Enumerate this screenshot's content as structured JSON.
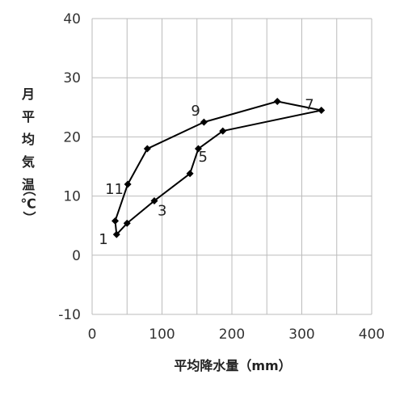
{
  "chart_data": {
    "type": "line",
    "xlabel": "平均降水量（mm）",
    "ylabel": "月平均気温（℃）",
    "ylabel_chars": [
      "月",
      "平",
      "均",
      "気",
      "温",
      "（℃）"
    ],
    "xlim": [
      0,
      400
    ],
    "ylim": [
      -10,
      40
    ],
    "xticks": [
      "0",
      "100",
      "200",
      "300",
      "400"
    ],
    "yticks": [
      "40",
      "30",
      "20",
      "10",
      "0",
      "-10"
    ],
    "grid": true,
    "closed_loop": true,
    "line_color": "#000000",
    "grid_color": "#bbbbbb",
    "points": [
      {
        "x": 35,
        "y": 3.5
      },
      {
        "x": 33,
        "y": 5.8
      },
      {
        "x": 51,
        "y": 12
      },
      {
        "x": 79,
        "y": 18
      },
      {
        "x": 160,
        "y": 22.5
      },
      {
        "x": 265,
        "y": 26
      },
      {
        "x": 328,
        "y": 24.5
      },
      {
        "x": 187,
        "y": 21
      },
      {
        "x": 152,
        "y": 18
      },
      {
        "x": 140,
        "y": 13.8
      },
      {
        "x": 89,
        "y": 9.2
      },
      {
        "x": 50,
        "y": 5.4
      }
    ],
    "annotations": [
      {
        "text": "1",
        "x": 35,
        "y": 3.5
      },
      {
        "text": "3",
        "x": 89,
        "y": 9.2
      },
      {
        "text": "5",
        "x": 152,
        "y": 18
      },
      {
        "text": "7",
        "x": 265,
        "y": 26
      },
      {
        "text": "9",
        "x": 160,
        "y": 22.5
      },
      {
        "text": "11",
        "x": 51,
        "y": 12
      }
    ]
  }
}
